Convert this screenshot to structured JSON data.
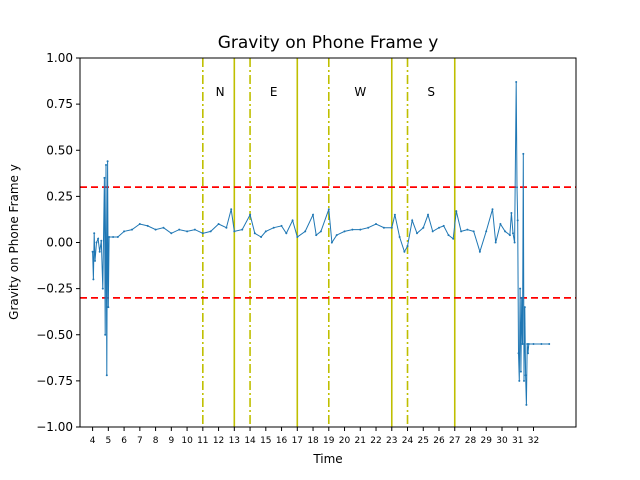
{
  "chart_data": {
    "type": "line",
    "title": "Gravity on Phone Frame y",
    "xlabel": "Time",
    "ylabel": "Gravity on Phone Frame y",
    "xlim": [
      3.2,
      34.7
    ],
    "ylim": [
      -1.0,
      1.0
    ],
    "grid": false,
    "x_ticks": [
      {
        "x": 4.0,
        "label": "4"
      },
      {
        "x": 5.0,
        "label": "5"
      },
      {
        "x": 6.0,
        "label": "6"
      },
      {
        "x": 7.0,
        "label": "7"
      },
      {
        "x": 8.0,
        "label": "8"
      },
      {
        "x": 9.0,
        "label": "9"
      },
      {
        "x": 10.0,
        "label": "10"
      },
      {
        "x": 11.0,
        "label": "11"
      },
      {
        "x": 12.0,
        "label": "12"
      },
      {
        "x": 13.0,
        "label": "13"
      },
      {
        "x": 14.0,
        "label": "14"
      },
      {
        "x": 15.0,
        "label": "15"
      },
      {
        "x": 16.0,
        "label": "16"
      },
      {
        "x": 17.0,
        "label": "17"
      },
      {
        "x": 18.0,
        "label": "18"
      },
      {
        "x": 19.0,
        "label": "19"
      },
      {
        "x": 20.0,
        "label": "20"
      },
      {
        "x": 21.0,
        "label": "21"
      },
      {
        "x": 22.0,
        "label": "22"
      },
      {
        "x": 23.0,
        "label": "23"
      },
      {
        "x": 24.0,
        "label": "24"
      },
      {
        "x": 25.0,
        "label": "25"
      },
      {
        "x": 26.0,
        "label": "26"
      },
      {
        "x": 27.0,
        "label": "27"
      },
      {
        "x": 28.0,
        "label": "28"
      },
      {
        "x": 29.0,
        "label": "29"
      },
      {
        "x": 30.0,
        "label": "30"
      },
      {
        "x": 31.0,
        "label": "31"
      },
      {
        "x": 32.0,
        "label": "32"
      }
    ],
    "y_ticks": [
      {
        "y": -1.0,
        "label": "−1.00"
      },
      {
        "y": -0.75,
        "label": "−0.75"
      },
      {
        "y": -0.5,
        "label": "−0.50"
      },
      {
        "y": -0.25,
        "label": "−0.25"
      },
      {
        "y": 0.0,
        "label": "0.00"
      },
      {
        "y": 0.25,
        "label": "0.25"
      },
      {
        "y": 0.5,
        "label": "0.50"
      },
      {
        "y": 0.75,
        "label": "0.75"
      },
      {
        "y": 1.0,
        "label": "1.00"
      }
    ],
    "threshold_lines": [
      {
        "y": 0.3,
        "color": "#ff0000",
        "style": "dashed"
      },
      {
        "y": -0.3,
        "color": "#ff0000",
        "style": "dashed"
      }
    ],
    "vertical_lines": [
      {
        "x": 11.0,
        "color": "#bfbf00",
        "style": "dashdot"
      },
      {
        "x": 13.0,
        "color": "#bfbf00",
        "style": "solid"
      },
      {
        "x": 14.0,
        "color": "#bfbf00",
        "style": "dashdot"
      },
      {
        "x": 17.0,
        "color": "#bfbf00",
        "style": "solid"
      },
      {
        "x": 19.0,
        "color": "#bfbf00",
        "style": "dashdot"
      },
      {
        "x": 23.0,
        "color": "#bfbf00",
        "style": "solid"
      },
      {
        "x": 24.0,
        "color": "#bfbf00",
        "style": "dashdot"
      },
      {
        "x": 27.0,
        "color": "#bfbf00",
        "style": "solid"
      }
    ],
    "annotations": [
      {
        "text": "N",
        "x": 12.1,
        "y": 0.82
      },
      {
        "text": "E",
        "x": 15.5,
        "y": 0.82
      },
      {
        "text": "W",
        "x": 21.0,
        "y": 0.82
      },
      {
        "text": "S",
        "x": 25.5,
        "y": 0.82
      }
    ],
    "series": [
      {
        "color": "#1f77b4",
        "points": [
          [
            4.0,
            -0.05
          ],
          [
            4.05,
            -0.2
          ],
          [
            4.1,
            0.05
          ],
          [
            4.15,
            -0.1
          ],
          [
            4.25,
            0.0
          ],
          [
            4.35,
            0.02
          ],
          [
            4.45,
            -0.05
          ],
          [
            4.55,
            0.01
          ],
          [
            4.65,
            -0.25
          ],
          [
            4.75,
            0.35
          ],
          [
            4.8,
            -0.5
          ],
          [
            4.85,
            0.42
          ],
          [
            4.9,
            -0.72
          ],
          [
            4.95,
            0.44
          ],
          [
            5.0,
            -0.35
          ],
          [
            5.05,
            0.03
          ],
          [
            5.3,
            0.03
          ],
          [
            5.6,
            0.03
          ],
          [
            6.0,
            0.06
          ],
          [
            6.5,
            0.07
          ],
          [
            7.0,
            0.1
          ],
          [
            7.5,
            0.09
          ],
          [
            8.0,
            0.07
          ],
          [
            8.5,
            0.08
          ],
          [
            9.0,
            0.05
          ],
          [
            9.5,
            0.07
          ],
          [
            10.0,
            0.06
          ],
          [
            10.5,
            0.07
          ],
          [
            11.0,
            0.05
          ],
          [
            11.5,
            0.06
          ],
          [
            12.0,
            0.1
          ],
          [
            12.5,
            0.08
          ],
          [
            12.8,
            0.18
          ],
          [
            13.0,
            0.06
          ],
          [
            13.5,
            0.07
          ],
          [
            14.0,
            0.15
          ],
          [
            14.3,
            0.05
          ],
          [
            14.7,
            0.03
          ],
          [
            15.0,
            0.06
          ],
          [
            15.5,
            0.08
          ],
          [
            16.0,
            0.09
          ],
          [
            16.3,
            0.05
          ],
          [
            16.7,
            0.12
          ],
          [
            17.0,
            0.03
          ],
          [
            17.5,
            0.06
          ],
          [
            18.0,
            0.15
          ],
          [
            18.2,
            0.04
          ],
          [
            18.5,
            0.06
          ],
          [
            19.0,
            0.18
          ],
          [
            19.2,
            0.0
          ],
          [
            19.5,
            0.04
          ],
          [
            20.0,
            0.06
          ],
          [
            20.5,
            0.07
          ],
          [
            21.0,
            0.07
          ],
          [
            21.5,
            0.08
          ],
          [
            22.0,
            0.1
          ],
          [
            22.5,
            0.08
          ],
          [
            23.0,
            0.08
          ],
          [
            23.2,
            0.15
          ],
          [
            23.5,
            0.03
          ],
          [
            23.8,
            -0.05
          ],
          [
            24.0,
            -0.02
          ],
          [
            24.3,
            0.12
          ],
          [
            24.6,
            0.05
          ],
          [
            25.0,
            0.08
          ],
          [
            25.3,
            0.15
          ],
          [
            25.6,
            0.06
          ],
          [
            26.0,
            0.08
          ],
          [
            26.3,
            0.09
          ],
          [
            26.6,
            0.04
          ],
          [
            26.9,
            0.02
          ],
          [
            27.1,
            0.17
          ],
          [
            27.4,
            0.06
          ],
          [
            27.8,
            0.07
          ],
          [
            28.2,
            0.06
          ],
          [
            28.6,
            -0.05
          ],
          [
            29.0,
            0.06
          ],
          [
            29.4,
            0.18
          ],
          [
            29.6,
            0.0
          ],
          [
            29.9,
            0.1
          ],
          [
            30.2,
            0.06
          ],
          [
            30.5,
            0.04
          ],
          [
            30.6,
            0.16
          ],
          [
            30.7,
            0.05
          ],
          [
            30.8,
            0.0
          ],
          [
            30.9,
            0.87
          ],
          [
            30.95,
            0.3
          ],
          [
            31.0,
            0.12
          ],
          [
            31.05,
            -0.6
          ],
          [
            31.1,
            -0.75
          ],
          [
            31.15,
            -0.25
          ],
          [
            31.2,
            -0.7
          ],
          [
            31.25,
            -0.3
          ],
          [
            31.3,
            -0.55
          ],
          [
            31.35,
            0.48
          ],
          [
            31.4,
            -0.75
          ],
          [
            31.45,
            -0.35
          ],
          [
            31.5,
            -0.72
          ],
          [
            31.55,
            -0.88
          ],
          [
            31.6,
            -0.55
          ],
          [
            31.65,
            -0.6
          ],
          [
            31.7,
            -0.55
          ],
          [
            32.0,
            -0.55
          ],
          [
            32.5,
            -0.55
          ],
          [
            33.0,
            -0.55
          ]
        ]
      }
    ]
  }
}
